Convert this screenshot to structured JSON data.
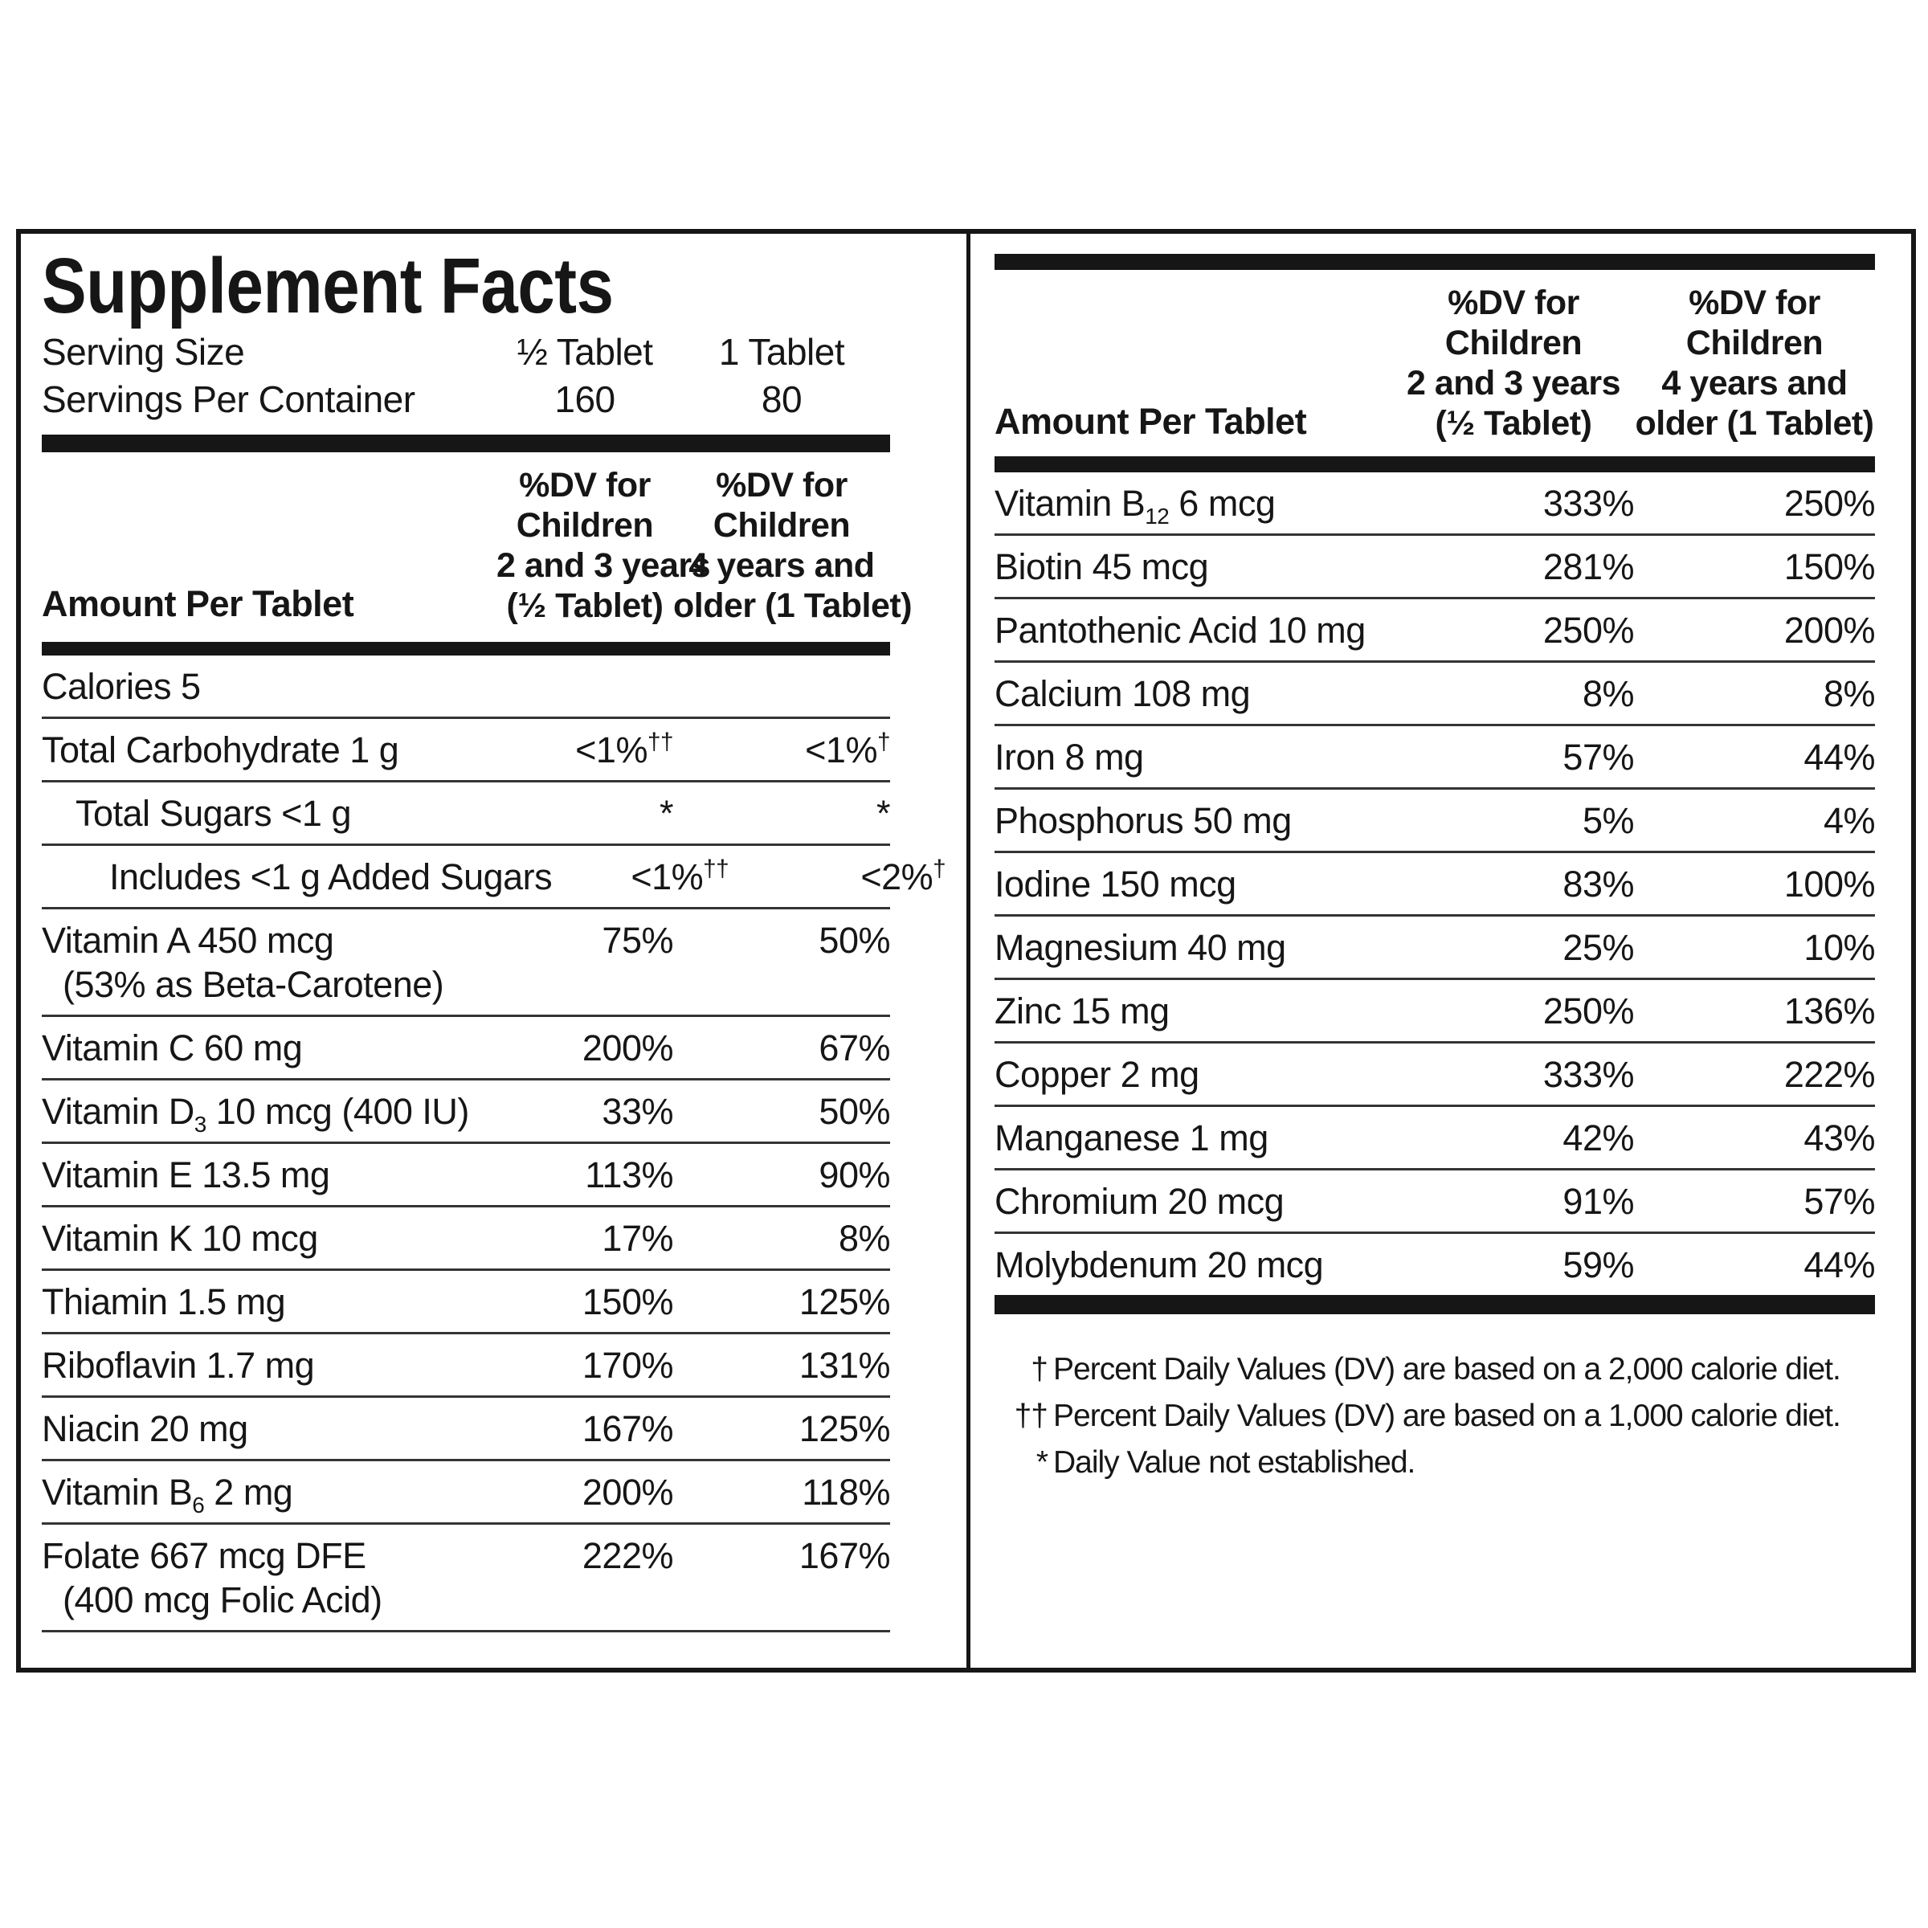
{
  "colors": {
    "background": "#ffffff",
    "text": "#161616",
    "rule": "#343434"
  },
  "title": "Supplement Facts",
  "serving": {
    "rows": [
      {
        "label": "Serving Size",
        "v1": "½ Tablet",
        "v2": "1 Tablet"
      },
      {
        "label": "Servings Per Container",
        "v1": "160",
        "v2": "80"
      }
    ]
  },
  "column_headers": {
    "amount": "Amount Per Tablet",
    "col1": [
      "%DV for",
      "Children",
      "2 and 3 years",
      "(½ Tablet)"
    ],
    "col2": [
      "%DV for",
      "Children",
      "4 years and",
      "older (1 Tablet)"
    ]
  },
  "left_table": {
    "rows": [
      {
        "name": "Calories 5",
        "v1": "",
        "v2": ""
      },
      {
        "name": "Total Carbohydrate 1 g",
        "v1": "<1%",
        "sup1": "††",
        "v2": "<1%",
        "sup2": "†"
      },
      {
        "name": "Total Sugars <1 g",
        "indent": 1,
        "v1": "*",
        "v2": "*"
      },
      {
        "name": "Includes <1 g Added Sugars",
        "indent": 2,
        "v1": "<1%",
        "sup1": "††",
        "v2": "<2%",
        "sup2": "†"
      },
      {
        "name": "Vitamin A 450 mcg",
        "note": "(53% as Beta-Carotene)",
        "v1": "75%",
        "v2": "50%"
      },
      {
        "name": "Vitamin C 60 mg",
        "v1": "200%",
        "v2": "67%"
      },
      {
        "name": "Vitamin D",
        "sub": "3",
        "name2": " 10 mcg (400 IU)",
        "v1": "33%",
        "v2": "50%"
      },
      {
        "name": "Vitamin E 13.5 mg",
        "v1": "113%",
        "v2": "90%"
      },
      {
        "name": "Vitamin K 10 mcg",
        "v1": "17%",
        "v2": "8%"
      },
      {
        "name": "Thiamin 1.5 mg",
        "v1": "150%",
        "v2": "125%"
      },
      {
        "name": "Riboflavin 1.7 mg",
        "v1": "170%",
        "v2": "131%"
      },
      {
        "name": "Niacin 20 mg",
        "v1": "167%",
        "v2": "125%"
      },
      {
        "name": "Vitamin B",
        "sub": "6",
        "name2": " 2 mg",
        "v1": "200%",
        "v2": "118%"
      },
      {
        "name": "Folate 667 mcg DFE",
        "note": "(400 mcg Folic Acid)",
        "v1": "222%",
        "v2": "167%"
      }
    ]
  },
  "right_table": {
    "rows": [
      {
        "name": "Vitamin B",
        "sub": "12",
        "name2": " 6 mcg",
        "v1": "333%",
        "v2": "250%"
      },
      {
        "name": "Biotin 45 mcg",
        "v1": "281%",
        "v2": "150%"
      },
      {
        "name": "Pantothenic Acid 10 mg",
        "v1": "250%",
        "v2": "200%"
      },
      {
        "name": "Calcium 108 mg",
        "v1": "8%",
        "v2": "8%"
      },
      {
        "name": "Iron 8 mg",
        "v1": "57%",
        "v2": "44%"
      },
      {
        "name": "Phosphorus 50 mg",
        "v1": "5%",
        "v2": "4%"
      },
      {
        "name": "Iodine 150 mcg",
        "v1": "83%",
        "v2": "100%"
      },
      {
        "name": "Magnesium 40 mg",
        "v1": "25%",
        "v2": "10%"
      },
      {
        "name": "Zinc 15 mg",
        "v1": "250%",
        "v2": "136%"
      },
      {
        "name": "Copper 2 mg",
        "v1": "333%",
        "v2": "222%"
      },
      {
        "name": "Manganese 1 mg",
        "v1": "42%",
        "v2": "43%"
      },
      {
        "name": "Chromium 20 mcg",
        "v1": "91%",
        "v2": "57%"
      },
      {
        "name": "Molybdenum 20 mcg",
        "v1": "59%",
        "v2": "44%"
      }
    ]
  },
  "footnotes": [
    {
      "marker": "†",
      "text": "Percent Daily Values (DV) are based on a 2,000 calorie diet."
    },
    {
      "marker": "††",
      "text": "Percent Daily Values (DV) are based on a 1,000 calorie diet."
    },
    {
      "marker": "*",
      "text": "Daily Value not established."
    }
  ]
}
